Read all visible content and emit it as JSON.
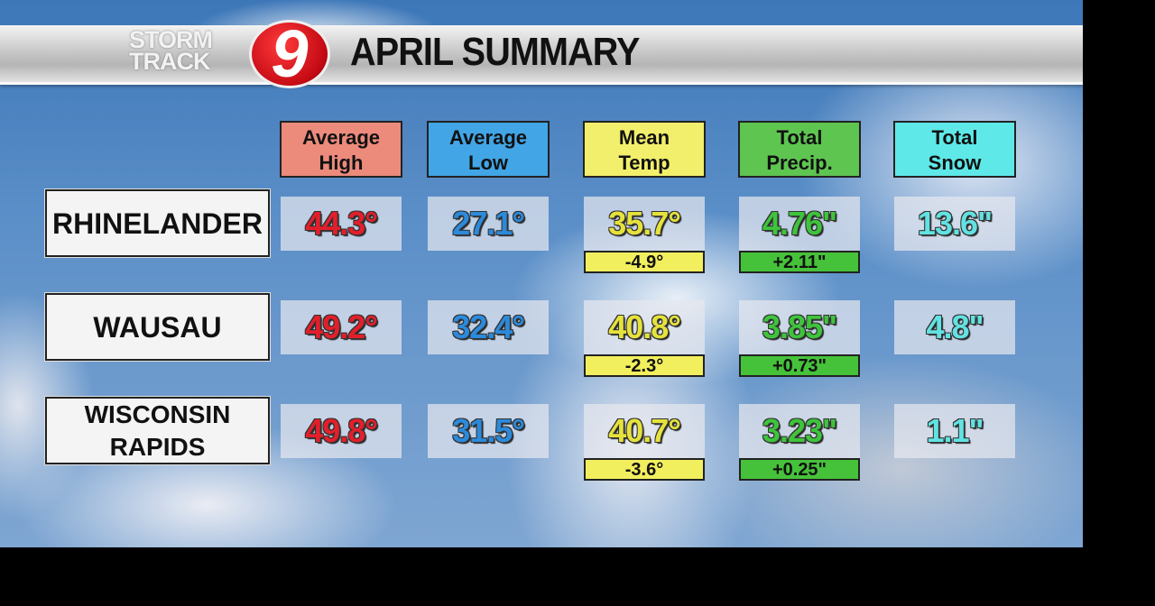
{
  "header": {
    "logo_line1": "STORM",
    "logo_line2": "TRACK",
    "logo_number": "9",
    "title": "APRIL SUMMARY"
  },
  "columns": [
    {
      "label_line1": "Average",
      "label_line2": "High",
      "color": "#ec8a7c",
      "text_color": "#e21f2b"
    },
    {
      "label_line1": "Average",
      "label_line2": "Low",
      "color": "#41a5e6",
      "text_color": "#2c8adb"
    },
    {
      "label_line1": "Mean",
      "label_line2": "Temp",
      "color": "#f2ef6c",
      "text_color": "#e6e23c"
    },
    {
      "label_line1": "Total",
      "label_line2": "Precip.",
      "color": "#5ec550",
      "text_color": "#3ec43c"
    },
    {
      "label_line1": "Total",
      "label_line2": "Snow",
      "color": "#5ee8e8",
      "text_color": "#62e2e2"
    }
  ],
  "rows": [
    {
      "city": "RHINELANDER",
      "high": "44.3°",
      "low": "27.1°",
      "mean": "35.7°",
      "mean_dev": "-4.9°",
      "precip": "4.76\"",
      "precip_dev": "+2.11\"",
      "snow": "13.6\""
    },
    {
      "city": "WAUSAU",
      "high": "49.2°",
      "low": "32.4°",
      "mean": "40.8°",
      "mean_dev": "-2.3°",
      "precip": "3.85\"",
      "precip_dev": "+0.73\"",
      "snow": "4.8\""
    },
    {
      "city": "WISCONSIN RAPIDS",
      "high": "49.8°",
      "low": "31.5°",
      "mean": "40.7°",
      "mean_dev": "-3.6°",
      "precip": "3.23\"",
      "precip_dev": "+0.25\"",
      "snow": "1.1\""
    }
  ]
}
